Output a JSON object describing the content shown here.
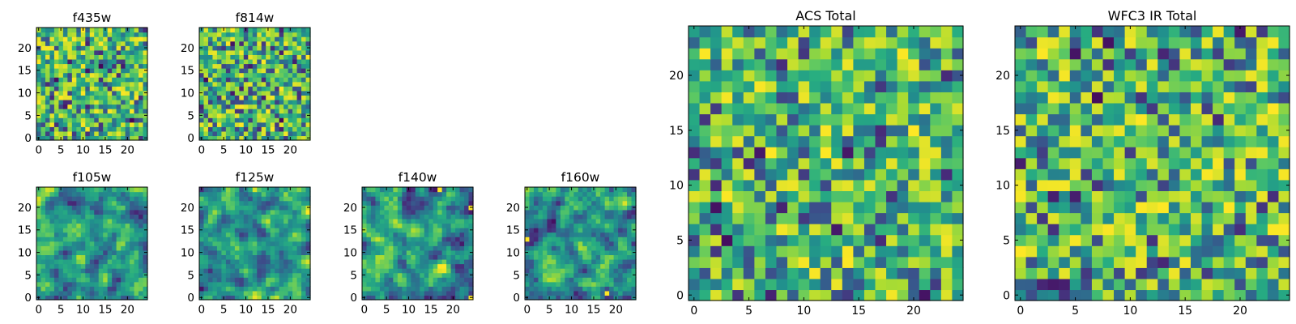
{
  "colormap": "viridis",
  "chart_data": [
    {
      "type": "heatmap",
      "title": "f435w",
      "grid_size": 25,
      "xticks": [
        0,
        5,
        10,
        15,
        20
      ],
      "yticks": [
        0,
        5,
        10,
        15,
        20
      ],
      "xlim": [
        0,
        25
      ],
      "ylim": [
        0,
        25
      ],
      "seed": 11,
      "smooth": 0
    },
    {
      "type": "heatmap",
      "title": "f814w",
      "grid_size": 25,
      "xticks": [
        0,
        5,
        10,
        15,
        20
      ],
      "yticks": [
        0,
        5,
        10,
        15,
        20
      ],
      "xlim": [
        0,
        25
      ],
      "ylim": [
        0,
        25
      ],
      "seed": 23,
      "smooth": 0
    },
    {
      "type": "heatmap",
      "title": "f105w",
      "grid_size": 25,
      "xticks": [
        0,
        5,
        10,
        15,
        20
      ],
      "yticks": [
        0,
        5,
        10,
        15,
        20
      ],
      "xlim": [
        0,
        25
      ],
      "ylim": [
        0,
        25
      ],
      "seed": 37,
      "smooth": 1
    },
    {
      "type": "heatmap",
      "title": "f125w",
      "grid_size": 25,
      "xticks": [
        0,
        5,
        10,
        15,
        20
      ],
      "yticks": [
        0,
        5,
        10,
        15,
        20
      ],
      "xlim": [
        0,
        25
      ],
      "ylim": [
        0,
        25
      ],
      "seed": 41,
      "smooth": 1
    },
    {
      "type": "heatmap",
      "title": "f140w",
      "grid_size": 25,
      "xticks": [
        0,
        5,
        10,
        15,
        20
      ],
      "yticks": [
        0,
        5,
        10,
        15,
        20
      ],
      "xlim": [
        0,
        25
      ],
      "ylim": [
        0,
        25
      ],
      "seed": 53,
      "smooth": 1
    },
    {
      "type": "heatmap",
      "title": "f160w",
      "grid_size": 25,
      "xticks": [
        0,
        5,
        10,
        15,
        20
      ],
      "yticks": [
        0,
        5,
        10,
        15,
        20
      ],
      "xlim": [
        0,
        25
      ],
      "ylim": [
        0,
        25
      ],
      "seed": 67,
      "smooth": 1
    },
    {
      "type": "heatmap",
      "title": "ACS Total",
      "grid_size": 25,
      "xticks": [
        0,
        5,
        10,
        15,
        20
      ],
      "yticks": [
        0,
        5,
        10,
        15,
        20
      ],
      "xlim": [
        0,
        25
      ],
      "ylim": [
        0,
        25
      ],
      "seed": 79,
      "smooth": 0
    },
    {
      "type": "heatmap",
      "title": "WFC3 IR Total",
      "grid_size": 25,
      "xticks": [
        0,
        5,
        10,
        15,
        20
      ],
      "yticks": [
        0,
        5,
        10,
        15,
        20
      ],
      "xlim": [
        0,
        25
      ],
      "ylim": [
        0,
        25
      ],
      "seed": 97,
      "smooth": 0
    }
  ]
}
